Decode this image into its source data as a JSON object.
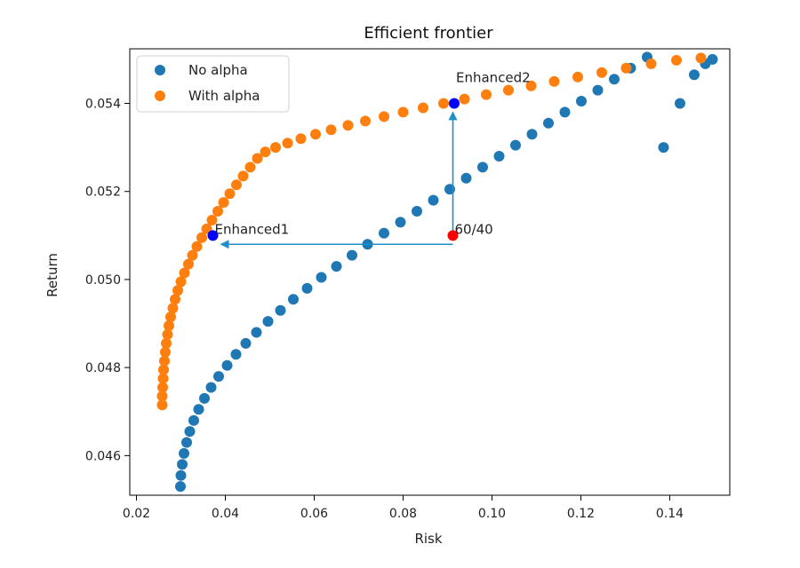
{
  "chart_data": {
    "type": "scatter",
    "title": "Efficient frontier",
    "xlabel": "Risk",
    "ylabel": "Return",
    "xlim": [
      0.0185,
      0.1535
    ],
    "ylim": [
      0.0451,
      0.05524
    ],
    "xticks": [
      0.02,
      0.04,
      0.06,
      0.08,
      0.1,
      0.12,
      0.14
    ],
    "xtick_labels": [
      "0.02",
      "0.04",
      "0.06",
      "0.08",
      "0.10",
      "0.12",
      "0.14"
    ],
    "yticks": [
      0.046,
      0.048,
      0.05,
      0.052,
      0.054
    ],
    "ytick_labels": [
      "0.046",
      "0.048",
      "0.050",
      "0.052",
      "0.054"
    ],
    "grid": false,
    "legend": {
      "placement": "upper-left"
    },
    "series": [
      {
        "name": "No alpha",
        "color": "#1f77b4",
        "points": [
          [
            0.0299,
            0.0453
          ],
          [
            0.03,
            0.04555
          ],
          [
            0.0303,
            0.0458
          ],
          [
            0.0307,
            0.04605
          ],
          [
            0.0313,
            0.0463
          ],
          [
            0.032,
            0.04655
          ],
          [
            0.0329,
            0.0468
          ],
          [
            0.034,
            0.04705
          ],
          [
            0.0353,
            0.0473
          ],
          [
            0.0368,
            0.04755
          ],
          [
            0.0385,
            0.0478
          ],
          [
            0.0404,
            0.04805
          ],
          [
            0.0424,
            0.0483
          ],
          [
            0.0446,
            0.04855
          ],
          [
            0.047,
            0.0488
          ],
          [
            0.0496,
            0.04905
          ],
          [
            0.0524,
            0.0493
          ],
          [
            0.0553,
            0.04955
          ],
          [
            0.0584,
            0.0498
          ],
          [
            0.0616,
            0.05005
          ],
          [
            0.065,
            0.0503
          ],
          [
            0.0685,
            0.05055
          ],
          [
            0.072,
            0.0508
          ],
          [
            0.0757,
            0.05105
          ],
          [
            0.0794,
            0.0513
          ],
          [
            0.0831,
            0.05155
          ],
          [
            0.0868,
            0.0518
          ],
          [
            0.0905,
            0.05205
          ],
          [
            0.0942,
            0.0523
          ],
          [
            0.0979,
            0.05255
          ],
          [
            0.1016,
            0.0528
          ],
          [
            0.1053,
            0.05305
          ],
          [
            0.109,
            0.0533
          ],
          [
            0.1127,
            0.05355
          ],
          [
            0.1164,
            0.0538
          ],
          [
            0.1201,
            0.05405
          ],
          [
            0.1238,
            0.0543
          ],
          [
            0.1275,
            0.05455
          ],
          [
            0.1312,
            0.0548
          ],
          [
            0.1349,
            0.05505
          ],
          [
            0.1386,
            0.053
          ],
          [
            0.1423,
            0.054
          ],
          [
            0.1455,
            0.05465
          ],
          [
            0.148,
            0.0549
          ],
          [
            0.1496,
            0.055
          ]
        ]
      },
      {
        "name": "With alpha",
        "color": "#ff7f0e",
        "points": [
          [
            0.0258,
            0.04715
          ],
          [
            0.0258,
            0.04735
          ],
          [
            0.0259,
            0.04755
          ],
          [
            0.026,
            0.04775
          ],
          [
            0.0261,
            0.04795
          ],
          [
            0.0263,
            0.04815
          ],
          [
            0.0265,
            0.04835
          ],
          [
            0.0267,
            0.04855
          ],
          [
            0.027,
            0.04875
          ],
          [
            0.0273,
            0.04895
          ],
          [
            0.0277,
            0.04915
          ],
          [
            0.0282,
            0.04935
          ],
          [
            0.0287,
            0.04955
          ],
          [
            0.0293,
            0.04975
          ],
          [
            0.03,
            0.04995
          ],
          [
            0.0308,
            0.05015
          ],
          [
            0.0317,
            0.05035
          ],
          [
            0.0326,
            0.05055
          ],
          [
            0.0336,
            0.05075
          ],
          [
            0.0347,
            0.05095
          ],
          [
            0.0358,
            0.05115
          ],
          [
            0.037,
            0.05135
          ],
          [
            0.0383,
            0.05155
          ],
          [
            0.0396,
            0.05175
          ],
          [
            0.041,
            0.05195
          ],
          [
            0.0425,
            0.05215
          ],
          [
            0.044,
            0.05235
          ],
          [
            0.0456,
            0.05255
          ],
          [
            0.0472,
            0.05275
          ],
          [
            0.049,
            0.0529
          ],
          [
            0.0513,
            0.053
          ],
          [
            0.054,
            0.0531
          ],
          [
            0.057,
            0.0532
          ],
          [
            0.0603,
            0.0533
          ],
          [
            0.0638,
            0.0534
          ],
          [
            0.0676,
            0.0535
          ],
          [
            0.0715,
            0.0536
          ],
          [
            0.0757,
            0.0537
          ],
          [
            0.08,
            0.0538
          ],
          [
            0.0845,
            0.0539
          ],
          [
            0.0891,
            0.054
          ],
          [
            0.0938,
            0.0541
          ],
          [
            0.0987,
            0.0542
          ],
          [
            0.1037,
            0.0543
          ],
          [
            0.1088,
            0.0544
          ],
          [
            0.114,
            0.0545
          ],
          [
            0.1193,
            0.0546
          ],
          [
            0.1247,
            0.0547
          ],
          [
            0.1302,
            0.0548
          ],
          [
            0.1358,
            0.0549
          ],
          [
            0.1415,
            0.05498
          ],
          [
            0.147,
            0.05503
          ]
        ]
      }
    ],
    "highlights": [
      {
        "label": "Enhanced1",
        "x": 0.0372,
        "y": 0.051,
        "color": "#0000ff"
      },
      {
        "label": "Enhanced2",
        "x": 0.0915,
        "y": 0.054,
        "color": "#0000ff"
      },
      {
        "label": "60/40",
        "x": 0.0912,
        "y": 0.051,
        "color": "#ff0000"
      }
    ],
    "arrows": [
      {
        "from": [
          0.0912,
          0.0508
        ],
        "to": [
          0.039,
          0.0508
        ],
        "color": "#1f8fc8"
      },
      {
        "from": [
          0.0912,
          0.051
        ],
        "to": [
          0.0912,
          0.0538
        ],
        "color": "#1f8fc8"
      }
    ]
  }
}
